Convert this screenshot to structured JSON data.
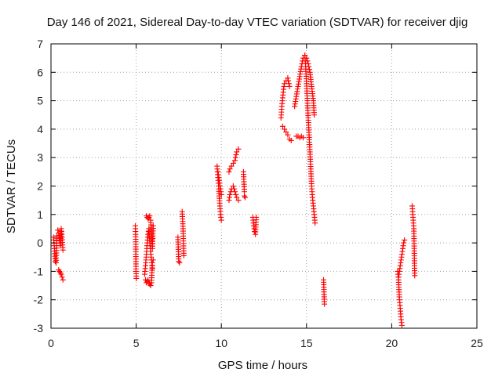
{
  "chart_data": {
    "type": "scatter",
    "title": "Day 146 of 2021, Sidereal Day-to-day VTEC variation (SDTVAR) for receiver djig",
    "xlabel": "GPS time / hours",
    "ylabel": "SDTVAR / TECUs",
    "xlim": [
      0,
      25
    ],
    "ylim": [
      -3,
      7
    ],
    "xticks": [
      0,
      5,
      10,
      15,
      20,
      25
    ],
    "yticks": [
      -3,
      -2,
      -1,
      0,
      1,
      2,
      3,
      4,
      5,
      6,
      7
    ],
    "grid": true,
    "marker": "+",
    "color": "#ff0000",
    "series": [
      {
        "name": "SDTVAR",
        "segments": [
          {
            "x": [
              0.15,
              0.2,
              0.25,
              0.3,
              0.35
            ],
            "y": [
              0.2,
              -0.2,
              -0.65,
              -0.7,
              0.25
            ]
          },
          {
            "x": [
              0.4,
              0.45,
              0.5,
              0.55,
              0.6,
              0.65,
              0.7
            ],
            "y": [
              0.45,
              0.35,
              0.1,
              -0.1,
              0.5,
              0.2,
              -0.25
            ]
          },
          {
            "x": [
              0.45,
              0.5,
              0.55,
              0.6,
              0.65,
              0.7
            ],
            "y": [
              -0.95,
              -1.0,
              -1.05,
              -1.1,
              -1.2,
              -1.3
            ]
          },
          {
            "x": [
              4.95,
              4.97,
              4.99,
              5.01
            ],
            "y": [
              0.6,
              0.3,
              -1.0,
              -1.25
            ]
          },
          {
            "x": [
              5.5,
              5.55,
              5.6,
              5.65,
              5.7,
              5.75,
              5.8,
              5.85,
              5.9,
              5.95
            ],
            "y": [
              -1.1,
              -0.8,
              -0.4,
              0.0,
              0.3,
              0.5,
              0.0,
              -0.3,
              -0.6,
              -0.9
            ]
          },
          {
            "x": [
              5.6,
              5.65,
              5.7,
              5.75,
              5.8,
              5.85,
              5.9,
              5.95,
              6.0
            ],
            "y": [
              0.95,
              0.9,
              0.85,
              0.9,
              0.95,
              0.8,
              0.3,
              -0.2,
              0.6
            ]
          },
          {
            "x": [
              5.55,
              5.6,
              5.65,
              5.7,
              5.75,
              5.8,
              5.85,
              5.9,
              5.95,
              6.0
            ],
            "y": [
              -1.3,
              -1.4,
              -1.35,
              -1.3,
              -1.4,
              -1.45,
              -1.5,
              -1.4,
              -0.7,
              -0.6
            ]
          },
          {
            "x": [
              7.45,
              7.5,
              7.55
            ],
            "y": [
              0.2,
              -0.65,
              -0.7
            ]
          },
          {
            "x": [
              7.7,
              7.75,
              7.8
            ],
            "y": [
              1.1,
              0.5,
              -0.45
            ]
          },
          {
            "x": [
              9.75,
              9.8,
              9.85,
              9.9,
              9.95,
              10.0
            ],
            "y": [
              2.7,
              2.3,
              1.9,
              1.4,
              1.0,
              0.8
            ]
          },
          {
            "x": [
              9.8,
              9.85,
              9.9,
              9.95,
              10.0
            ],
            "y": [
              2.5,
              2.3,
              2.1,
              1.9,
              1.7
            ]
          },
          {
            "x": [
              10.45,
              10.5,
              10.6,
              10.7,
              10.8,
              10.9,
              11.0
            ],
            "y": [
              2.5,
              2.6,
              2.7,
              2.8,
              2.9,
              3.2,
              3.3
            ]
          },
          {
            "x": [
              10.45,
              10.5,
              10.6,
              10.7,
              10.8,
              10.9,
              11.0
            ],
            "y": [
              1.5,
              1.7,
              1.9,
              2.0,
              1.8,
              1.6,
              1.5
            ]
          },
          {
            "x": [
              11.3,
              11.35
            ],
            "y": [
              2.5,
              1.8
            ]
          },
          {
            "x": [
              11.35,
              11.4
            ],
            "y": [
              1.65,
              1.6
            ]
          },
          {
            "x": [
              11.85,
              11.9,
              11.95,
              12.0,
              12.05
            ],
            "y": [
              0.9,
              0.6,
              0.4,
              0.3,
              0.9
            ]
          },
          {
            "x": [
              13.5,
              13.55,
              13.6,
              13.65,
              13.7,
              13.8,
              13.9,
              14.0
            ],
            "y": [
              4.4,
              4.8,
              5.1,
              5.4,
              5.6,
              5.7,
              5.8,
              5.5
            ]
          },
          {
            "x": [
              13.6,
              13.7,
              13.8,
              13.9,
              14.0,
              14.1
            ],
            "y": [
              4.1,
              4.0,
              3.9,
              3.8,
              3.65,
              3.6
            ]
          },
          {
            "x": [
              14.3,
              14.5,
              14.7,
              14.8,
              14.9
            ],
            "y": [
              4.8,
              5.5,
              6.2,
              6.5,
              6.6
            ]
          },
          {
            "x": [
              14.4,
              14.5,
              14.6,
              14.7,
              14.8
            ],
            "y": [
              3.75,
              3.75,
              3.7,
              3.75,
              3.7
            ]
          },
          {
            "x": [
              14.9,
              14.95,
              15.0,
              15.05,
              15.1,
              15.15,
              15.2,
              15.25,
              15.3,
              15.35,
              15.4,
              15.45,
              15.5
            ],
            "y": [
              6.6,
              6.2,
              5.6,
              5.0,
              4.4,
              3.8,
              3.2,
              2.6,
              2.0,
              1.6,
              1.3,
              1.0,
              0.7
            ]
          },
          {
            "x": [
              15.0,
              15.1,
              15.2,
              15.3,
              15.4,
              15.45
            ],
            "y": [
              6.5,
              6.3,
              6.0,
              5.5,
              5.0,
              4.5
            ]
          },
          {
            "x": [
              16.0,
              16.05
            ],
            "y": [
              -1.3,
              -2.15
            ]
          },
          {
            "x": [
              20.35,
              20.4,
              20.45,
              20.5,
              20.55,
              20.6
            ],
            "y": [
              -1.0,
              -1.3,
              -1.9,
              -2.3,
              -2.7,
              -2.9
            ]
          },
          {
            "x": [
              20.4,
              20.45,
              20.5,
              20.55,
              20.6,
              20.65,
              20.7,
              20.75
            ],
            "y": [
              -1.2,
              -1.0,
              -0.8,
              -0.6,
              -0.4,
              -0.2,
              0.0,
              0.1
            ]
          },
          {
            "x": [
              21.2,
              21.25,
              21.3,
              21.35
            ],
            "y": [
              1.3,
              0.9,
              0.5,
              -1.15
            ]
          }
        ]
      }
    ]
  }
}
